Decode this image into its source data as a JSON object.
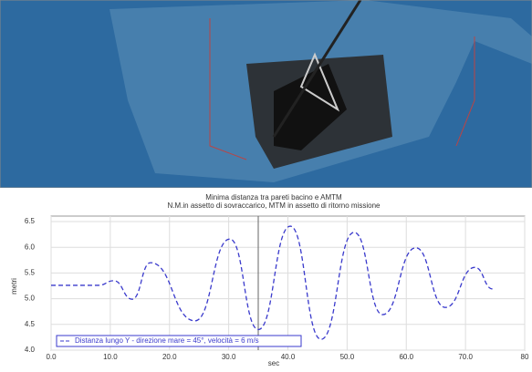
{
  "chart_data": {
    "type": "line",
    "title": "Minima distanza tra pareti bacino e AMTM",
    "subtitle": "N.M.in assetto di sovraccarico, MTM in assetto di ritorno missione",
    "x_label": "sec",
    "y_label": "metri",
    "x": [
      0,
      8,
      10.6,
      13.7,
      16.8,
      24.3,
      30.2,
      35,
      40.4,
      45.6,
      51.2,
      56,
      61.6,
      66.6,
      71.6,
      74.6
    ],
    "series": [
      {
        "name": "Distanza lungo Y - direzione mare = 45°, velocità = 6 m/s",
        "color": "#3a3acc",
        "values": [
          5.26,
          5.26,
          5.35,
          4.99,
          5.7,
          4.57,
          6.16,
          4.4,
          6.41,
          4.21,
          6.29,
          4.69,
          5.99,
          4.83,
          5.61,
          5.19
        ]
      }
    ],
    "xlim": [
      0,
      80
    ],
    "ylim": [
      4,
      6.5
    ],
    "xticks": [
      {
        "value": 0,
        "label": "0.0"
      },
      {
        "value": 10,
        "label": "10.0"
      },
      {
        "value": 20,
        "label": "20.0"
      },
      {
        "value": 30,
        "label": "30.0"
      },
      {
        "value": 40,
        "label": "40.0"
      },
      {
        "value": 50,
        "label": "50.0"
      },
      {
        "value": 60,
        "label": "60.0"
      },
      {
        "value": 70,
        "label": "70.0"
      },
      80
    ],
    "yticks": [
      {
        "value": 4,
        "label": "4.0"
      },
      {
        "value": 4.5,
        "label": "4.5"
      },
      {
        "value": 5,
        "label": "5.0"
      },
      {
        "value": 5.5,
        "label": "5.5"
      },
      {
        "value": 6,
        "label": "6.0"
      },
      {
        "value": 6.5,
        "label": "6.5"
      }
    ],
    "grid": true
  }
}
